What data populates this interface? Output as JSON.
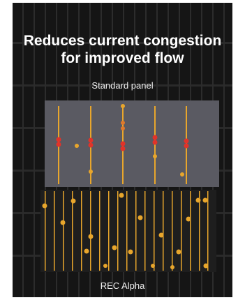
{
  "headline": {
    "line1": "Reduces current congestion",
    "line2": "for improved flow"
  },
  "standard_panel": {
    "label": "Standard panel",
    "background": "#5a5a62",
    "conductor_color": "#e8a62c",
    "congestion_color": "#e0332a"
  },
  "rec_alpha_panel": {
    "label": "REC Alpha",
    "background": "#1e1e1e",
    "conductor_color": "#e8a62c"
  }
}
